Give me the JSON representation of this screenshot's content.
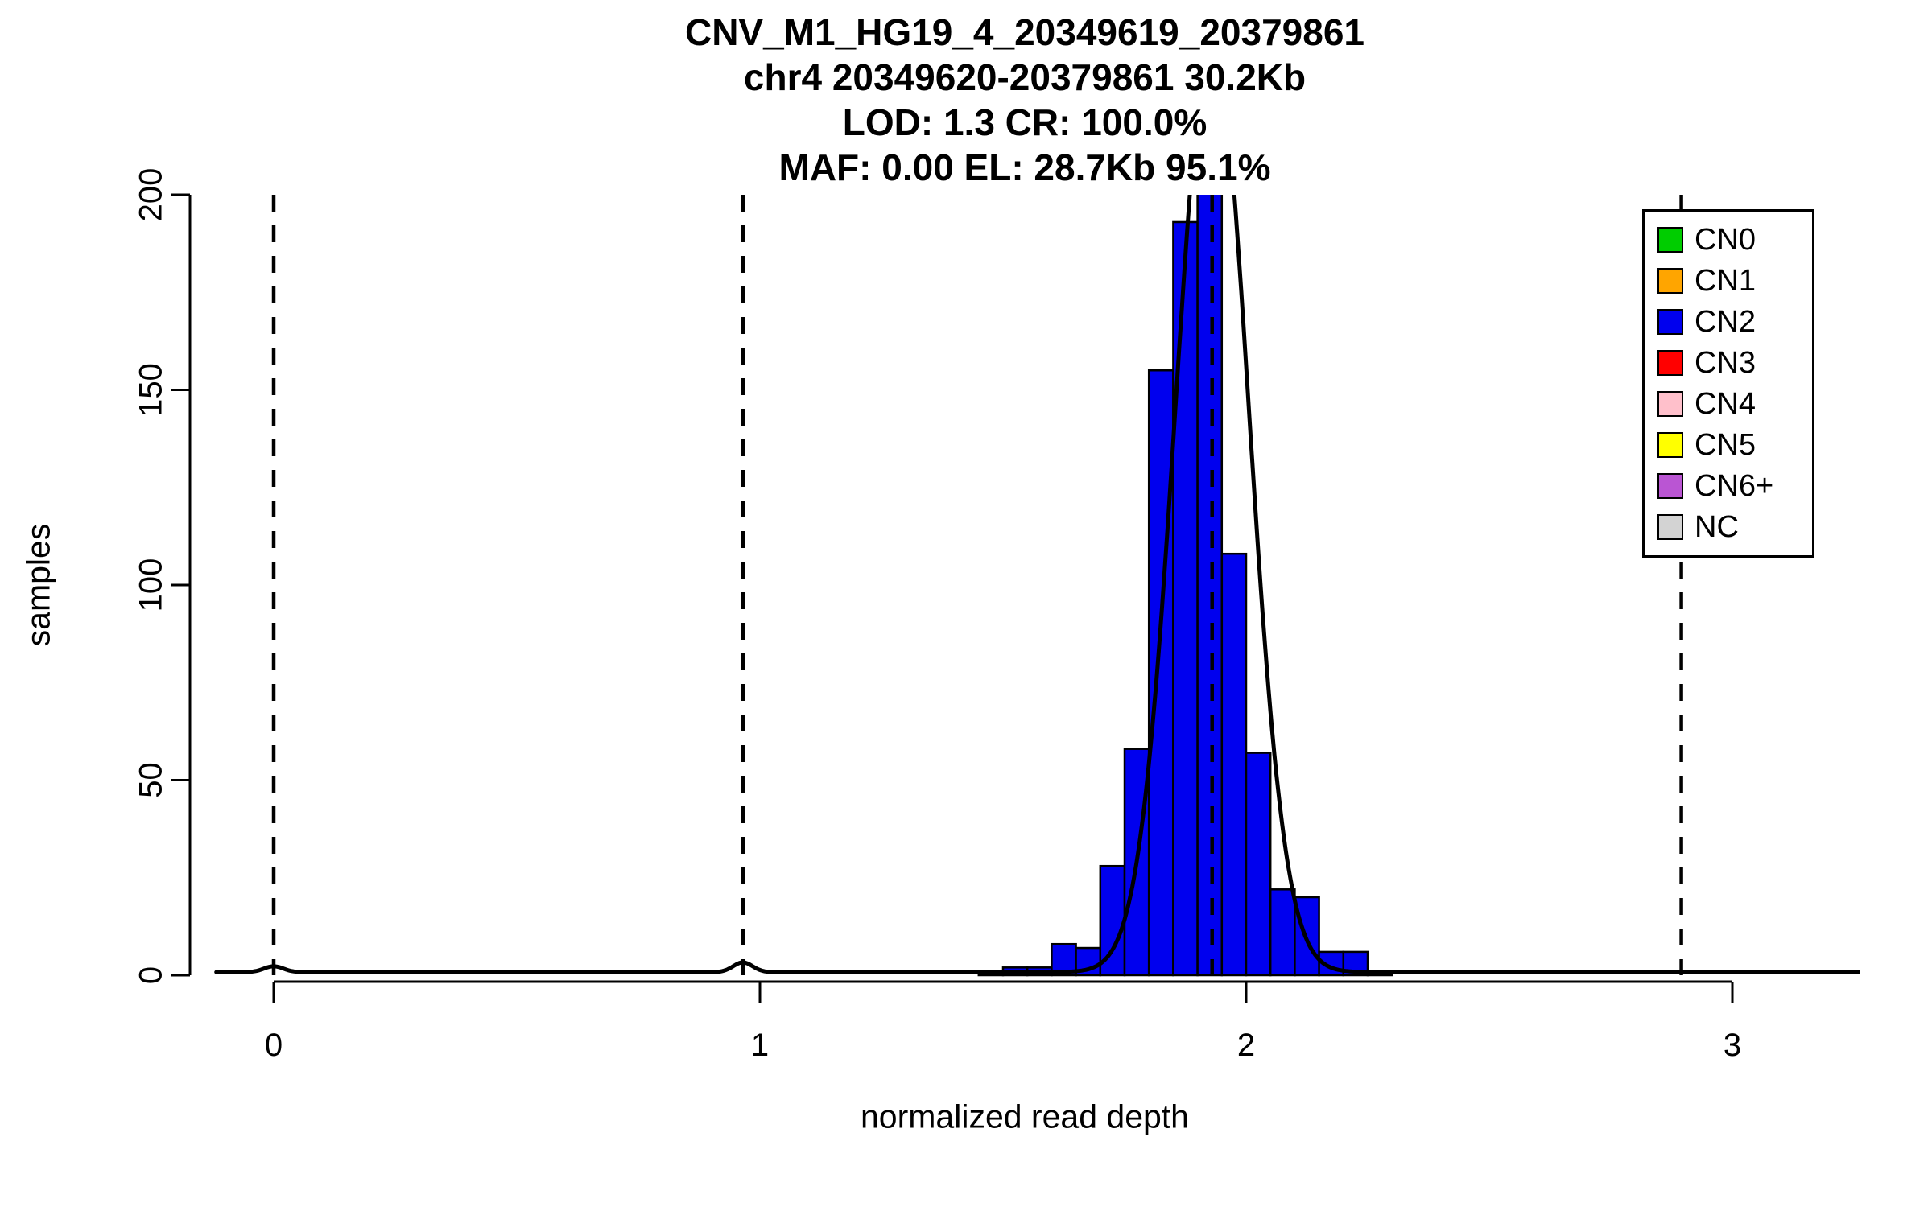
{
  "chart_data": {
    "type": "bar",
    "title_lines": [
      "CNV_M1_HG19_4_20349619_20379861",
      "chr4 20349620-20379861 30.2Kb",
      "LOD: 1.3 CR: 100.0%",
      "MAF: 0.00 EL: 28.7Kb 95.1%"
    ],
    "xlabel": "normalized read depth",
    "ylabel": "samples",
    "xlim": [
      -0.12,
      3.27
    ],
    "ylim": [
      0,
      200
    ],
    "x_ticks": [
      0,
      1,
      2,
      3
    ],
    "y_ticks": [
      0,
      50,
      100,
      150,
      200
    ],
    "grid": false,
    "bar_color": "#0000EE",
    "bar_border_color": "#000000",
    "bin_width": 0.05,
    "bins": [
      {
        "x": 1.45,
        "count": 1
      },
      {
        "x": 1.5,
        "count": 2
      },
      {
        "x": 1.55,
        "count": 2
      },
      {
        "x": 1.6,
        "count": 8
      },
      {
        "x": 1.65,
        "count": 7
      },
      {
        "x": 1.7,
        "count": 28
      },
      {
        "x": 1.75,
        "count": 58
      },
      {
        "x": 1.8,
        "count": 155
      },
      {
        "x": 1.85,
        "count": 193
      },
      {
        "x": 1.9,
        "count": 213
      },
      {
        "x": 1.95,
        "count": 108
      },
      {
        "x": 2.0,
        "count": 57
      },
      {
        "x": 2.05,
        "count": 22
      },
      {
        "x": 2.1,
        "count": 20
      },
      {
        "x": 2.15,
        "count": 6
      },
      {
        "x": 2.2,
        "count": 6
      },
      {
        "x": 2.25,
        "count": 1
      }
    ],
    "fit_curve": {
      "mean": 1.93,
      "sd": 0.075,
      "peak": 240,
      "baseline": 0.8,
      "color": "#000000",
      "minor_bumps": [
        {
          "x": 0.0,
          "height": 1.5
        },
        {
          "x": 0.965,
          "height": 2.5
        }
      ]
    },
    "dashed_lines": {
      "x_values": [
        0.0,
        0.965,
        1.93,
        2.895
      ],
      "color": "#000000"
    },
    "legend": {
      "position": "top-right",
      "items": [
        {
          "label": "CN0",
          "color": "#00CD00"
        },
        {
          "label": "CN1",
          "color": "#FFA500"
        },
        {
          "label": "CN2",
          "color": "#0000EE"
        },
        {
          "label": "CN3",
          "color": "#FF0000"
        },
        {
          "label": "CN4",
          "color": "#FFC0CB"
        },
        {
          "label": "CN5",
          "color": "#FFFF00"
        },
        {
          "label": "CN6+",
          "color": "#BA55D3"
        },
        {
          "label": "NC",
          "color": "#D3D3D3"
        }
      ]
    }
  }
}
